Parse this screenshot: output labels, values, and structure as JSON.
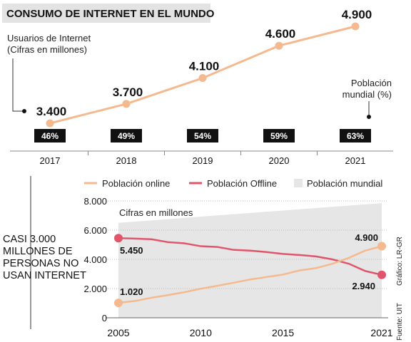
{
  "chart_data": [
    {
      "type": "line",
      "title": "CONSUMO DE INTERNET EN EL MUNDO",
      "ylabel_lines": [
        "Usuarios de Internet",
        "(Cifras en millones)"
      ],
      "x": [
        "2017",
        "2018",
        "2019",
        "2020",
        "2021"
      ],
      "values": [
        3400,
        3700,
        4100,
        4600,
        4900
      ],
      "value_labels": [
        "3.400",
        "3.700",
        "4.100",
        "4.600",
        "4.900"
      ],
      "secondary_label_lines": [
        "Población",
        "mundial (%)"
      ],
      "secondary_values": [
        46,
        49,
        54,
        59,
        63
      ],
      "secondary_labels": [
        "46%",
        "49%",
        "54%",
        "59%",
        "63%"
      ],
      "line_color": "#f5b98f"
    },
    {
      "type": "line",
      "side_text_lines": [
        "CASI 3.000",
        "MILLONES DE",
        "PERSONAS NO",
        "USAN INTERNET"
      ],
      "note": "Cifras en millones",
      "ylim": [
        0,
        8000
      ],
      "y_ticks": [
        0,
        2000,
        4000,
        6000,
        8000
      ],
      "y_tick_labels": [
        "0",
        "2.000",
        "4.000",
        "6.000",
        "8.000"
      ],
      "x_ticks": [
        "2005",
        "2010",
        "2015",
        "2021"
      ],
      "x_tick_values": [
        2005,
        2010,
        2015,
        2021
      ],
      "x_range": [
        2005,
        2021
      ],
      "legend": [
        "Población online",
        "Población Offline",
        "Población mundial"
      ],
      "series": [
        {
          "name": "Población online",
          "color": "#f5b98f",
          "x": [
            2005,
            2006,
            2007,
            2008,
            2009,
            2010,
            2011,
            2012,
            2013,
            2014,
            2015,
            2016,
            2017,
            2018,
            2019,
            2020,
            2021
          ],
          "values": [
            1020,
            1150,
            1370,
            1550,
            1750,
            1990,
            2190,
            2400,
            2620,
            2790,
            2960,
            3240,
            3400,
            3700,
            4100,
            4600,
            4900
          ]
        },
        {
          "name": "Población Offline",
          "color": "#e0556b",
          "x": [
            2005,
            2006,
            2007,
            2008,
            2009,
            2010,
            2011,
            2012,
            2013,
            2014,
            2015,
            2016,
            2017,
            2018,
            2019,
            2020,
            2021
          ],
          "values": [
            5450,
            5420,
            5380,
            5180,
            5100,
            4900,
            4850,
            4650,
            4600,
            4500,
            4370,
            4300,
            4200,
            4000,
            3700,
            3200,
            2940
          ]
        },
        {
          "name": "Población mundial",
          "color": "#e6e6e6",
          "x": [
            2005,
            2021
          ],
          "values": [
            6500,
            7850
          ]
        }
      ],
      "annotations": {
        "online_start": "1.020",
        "online_end": "4.900",
        "offline_start": "5.450",
        "offline_end": "2.940"
      }
    }
  ],
  "credits": {
    "source": "Fuente: UIT",
    "graphic": "Gráfico: LR-GR"
  }
}
